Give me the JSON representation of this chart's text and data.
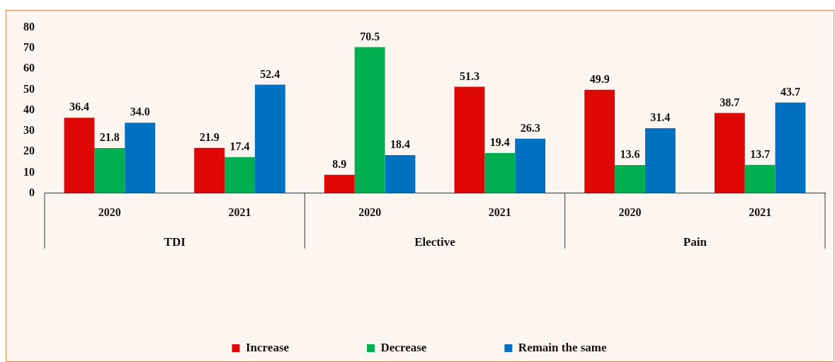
{
  "chart_data": {
    "type": "bar",
    "categories": [
      "2020",
      "2021",
      "2020",
      "2021",
      "2020",
      "2021"
    ],
    "annotations": [
      "TDI",
      "Elective",
      "Pain"
    ],
    "series": [
      {
        "name": "Increase",
        "color": "#dd0806",
        "values": [
          36.4,
          21.9,
          8.9,
          51.3,
          49.9,
          38.7
        ],
        "value_labels": [
          "36.4",
          "21.9",
          "8.9",
          "51.3",
          "49.9",
          "38.7"
        ]
      },
      {
        "name": "Decrease",
        "color": "#00b050",
        "values": [
          21.8,
          17.4,
          70.5,
          19.4,
          13.6,
          13.7
        ],
        "value_labels": [
          "21.8",
          "17.4",
          "70.5",
          "19.4",
          "13.6",
          "13.7"
        ]
      },
      {
        "name": "Remain the same",
        "color": "#0070c0",
        "values": [
          34.0,
          52.4,
          18.4,
          26.3,
          31.4,
          43.7
        ],
        "value_labels": [
          "34.0",
          "52.4",
          "18.4",
          "26.3",
          "31.4",
          "43.7"
        ]
      }
    ],
    "ylim": [
      0,
      80
    ],
    "yticks": [
      0,
      10,
      20,
      30,
      40,
      50,
      60,
      70,
      80
    ],
    "grid": false,
    "legend": "bottom"
  }
}
